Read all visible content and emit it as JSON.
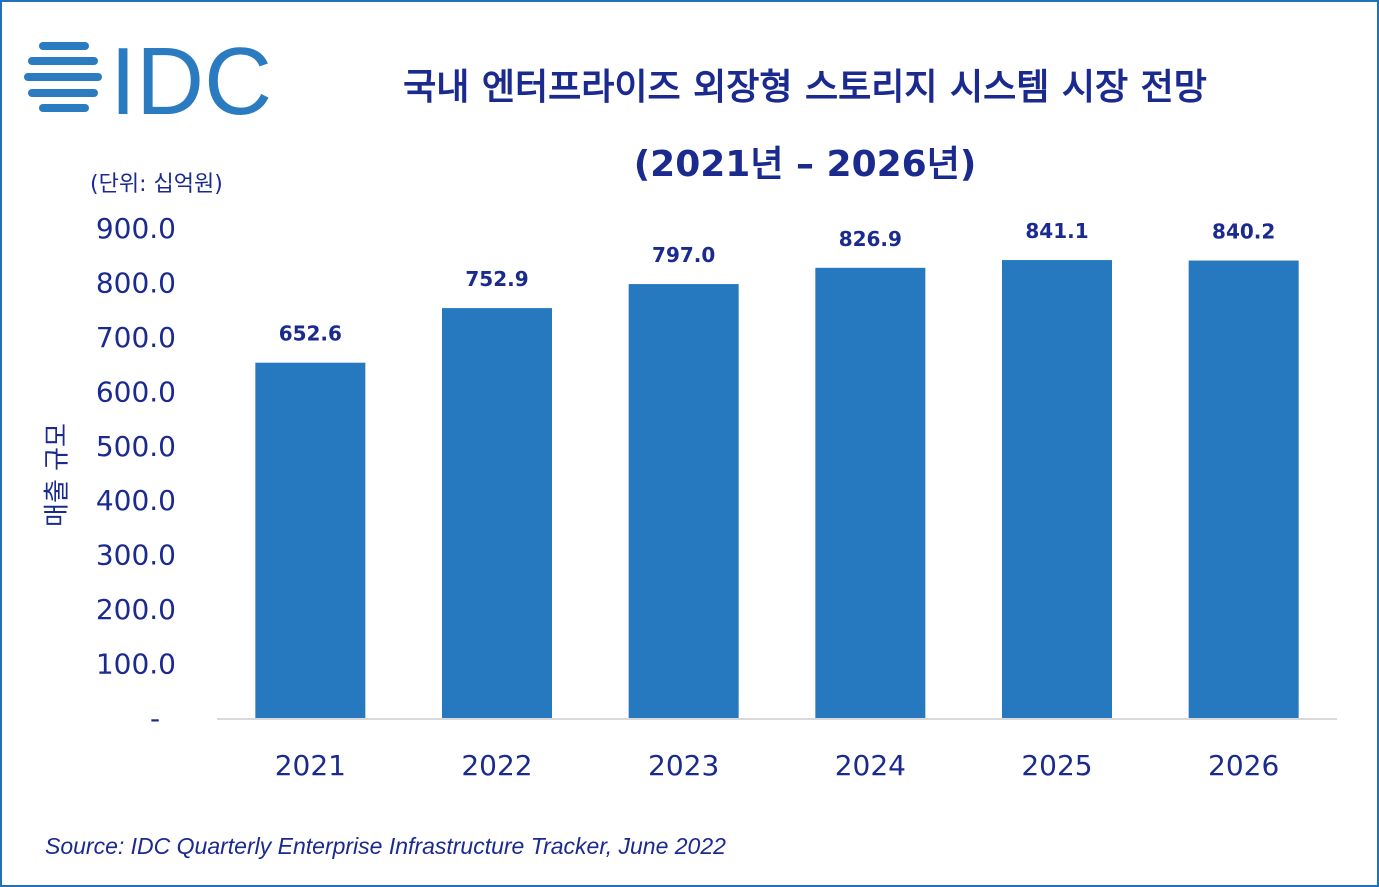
{
  "logo_text": "IDC",
  "colors": {
    "bar": "#2679be",
    "text": "#1a2a8f",
    "logo": "#2b7bc0",
    "border": "#2272b9"
  },
  "chart_data": {
    "type": "bar",
    "title": "국내 엔터프라이즈 외장형 스토리지 시스템 시장 전망",
    "subtitle": "(2021년 – 2026년)",
    "unit_note": "(단위: 십억원)",
    "ylabel": "매출 규모",
    "xlabel": "",
    "categories": [
      "2021",
      "2022",
      "2023",
      "2024",
      "2025",
      "2026"
    ],
    "values": [
      652.6,
      752.9,
      797.0,
      826.9,
      841.1,
      840.2
    ],
    "data_labels": [
      "652.6",
      "752.9",
      "797.0",
      "826.9",
      "841.1",
      "840.2"
    ],
    "ylim": [
      0,
      900
    ],
    "yticks": [
      0,
      100,
      200,
      300,
      400,
      500,
      600,
      700,
      800,
      900
    ],
    "ytick_labels": [
      "-",
      "100.0",
      "200.0",
      "300.0",
      "400.0",
      "500.0",
      "600.0",
      "700.0",
      "800.0",
      "900.0"
    ],
    "grid": false,
    "legend": "none"
  },
  "source": "Source: IDC Quarterly Enterprise Infrastructure Tracker, June 2022"
}
